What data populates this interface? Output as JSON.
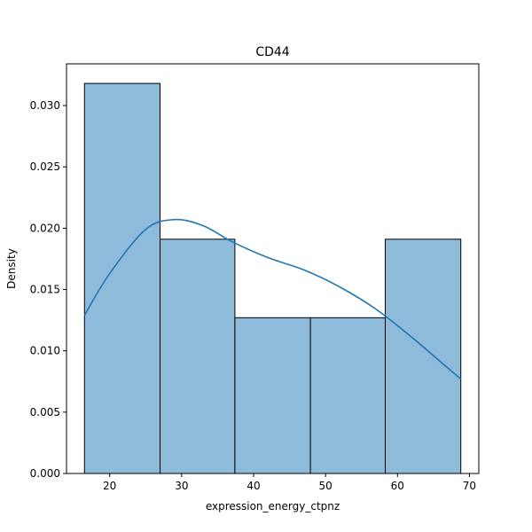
{
  "chart_data": {
    "type": "bar",
    "subtype": "histogram-with-kde",
    "title": "CD44",
    "xlabel": "expression_energy_ctpnz",
    "ylabel": "Density",
    "xlim": [
      14,
      71.3
    ],
    "ylim": [
      0,
      0.0334
    ],
    "xticks": [
      20,
      30,
      40,
      50,
      60,
      70
    ],
    "yticks": [
      0.0,
      0.005,
      0.01,
      0.015,
      0.02,
      0.025,
      0.03
    ],
    "ytick_labels": [
      "0.000",
      "0.005",
      "0.010",
      "0.015",
      "0.020",
      "0.025",
      "0.030"
    ],
    "bins": [
      {
        "x0": 16.5,
        "x1": 27.0,
        "density": 0.0318
      },
      {
        "x0": 27.0,
        "x1": 37.4,
        "density": 0.0191
      },
      {
        "x0": 37.4,
        "x1": 47.9,
        "density": 0.0127
      },
      {
        "x0": 47.9,
        "x1": 58.3,
        "density": 0.0127
      },
      {
        "x0": 58.3,
        "x1": 68.8,
        "density": 0.0191
      }
    ],
    "kde": {
      "x": [
        16.5,
        20,
        25,
        29,
        33,
        37,
        42,
        47,
        52,
        57,
        62,
        66,
        68.8
      ],
      "y": [
        0.0129,
        0.0163,
        0.0199,
        0.0207,
        0.0202,
        0.0189,
        0.0176,
        0.0166,
        0.0152,
        0.0134,
        0.0111,
        0.0091,
        0.0077
      ]
    },
    "colors": {
      "bar_fill": "#8fbbda",
      "bar_edge": "#000000",
      "kde_line": "#1f77b4"
    },
    "grid": false,
    "legend": "none"
  }
}
